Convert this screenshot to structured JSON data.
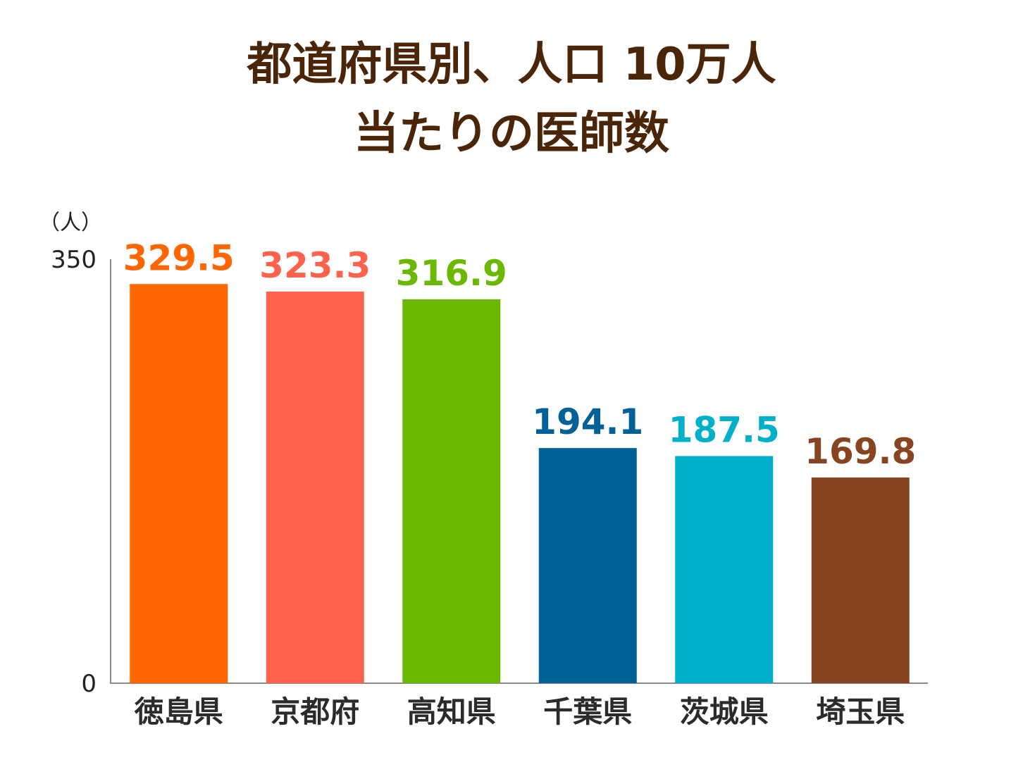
{
  "title_lines": [
    "都道府県別、人口 10万人",
    "当たりの医師数"
  ],
  "chart_data": {
    "type": "bar",
    "title": "都道府県別、人口 10万人当たりの医師数",
    "xlabel": "",
    "ylabel": "",
    "unit_label": "（人）",
    "ylim": [
      0,
      350
    ],
    "yticks": [
      0,
      350
    ],
    "grid": false,
    "categories": [
      "徳島県",
      "京都府",
      "高知県",
      "千葉県",
      "茨城県",
      "埼玉県"
    ],
    "values": [
      329.5,
      323.3,
      316.9,
      194.1,
      187.5,
      169.8
    ],
    "value_labels": [
      "329.5",
      "323.3",
      "316.9",
      "194.1",
      "187.5",
      "169.8"
    ],
    "colors": [
      "#ff6600",
      "#ff634d",
      "#6ab800",
      "#006196",
      "#00b0c8",
      "#874420"
    ],
    "axis_color": "#8a8a8a"
  }
}
